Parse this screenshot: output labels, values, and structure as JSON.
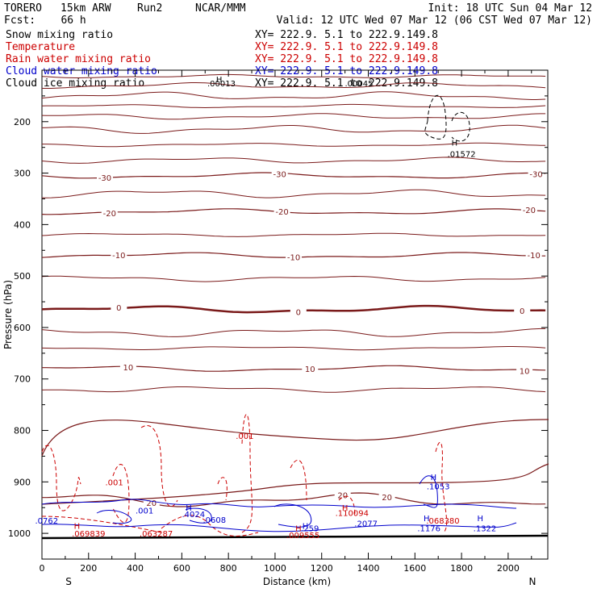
{
  "header": {
    "model": "TORERO",
    "run_desc": "15km ARW",
    "run": "Run2",
    "org": "NCAR/MMM",
    "fcst": "Fcst:    66 h",
    "init": "Init: 18 UTC Sun 04 Mar 12",
    "valid": "Valid: 12 UTC Wed 07 Mar 12 (06 CST Wed 07 Mar 12)"
  },
  "fields": [
    {
      "name": "Snow mixing ratio",
      "xy": "XY= 222.9.  5.1 to 222.9.149.8",
      "color": "#000000"
    },
    {
      "name": "Temperature",
      "xy": "XY= 222.9.  5.1 to 222.9.149.8",
      "color": "#cc0000"
    },
    {
      "name": "Rain water mixing ratio",
      "xy": "XY= 222.9.  5.1 to 222.9.149.8",
      "color": "#cc0000"
    },
    {
      "name": "Cloud water mixing ratio",
      "xy": "XY= 222.9.  5.1 to 222.9.149.8",
      "color": "#0000cc"
    },
    {
      "name": "Cloud ice mixing ratio",
      "xy": "XY= 222.9.  5.1 to 222.9.149.8",
      "color": "#000000"
    }
  ],
  "chart_data": {
    "type": "line",
    "xlabel": "Distance (km)",
    "ylabel": "Pressure (hPa)",
    "xlim": [
      0,
      2170
    ],
    "ylim": [
      1050,
      100
    ],
    "x_ticks": [
      0,
      200,
      400,
      600,
      800,
      1000,
      1200,
      1400,
      1600,
      1800,
      2000
    ],
    "y_ticks": [
      200,
      300,
      400,
      500,
      600,
      700,
      800,
      900,
      1000
    ],
    "endpoints": {
      "left": "S",
      "right": "N"
    },
    "temperature_isotherms": [
      {
        "label": "-30",
        "p": 305,
        "label_x": [
          270,
          1020,
          2120
        ]
      },
      {
        "label": "-20",
        "p": 375,
        "label_x": [
          290,
          1030,
          2090
        ]
      },
      {
        "label": "-10",
        "p": 460,
        "label_x": [
          330,
          1080,
          2110
        ]
      },
      {
        "label": "0",
        "p": 565,
        "label_x": [
          330,
          1100,
          2060
        ]
      },
      {
        "label": "10",
        "p": 680,
        "label_x": [
          370,
          1150,
          2070
        ]
      },
      {
        "label": "20",
        "p": 935,
        "label_x": [
          470,
          1290,
          1480
        ]
      }
    ],
    "contour_labels": [
      {
        "text": "H",
        "x": 760,
        "p": 117,
        "series": "Snow mixing ratio"
      },
      {
        "text": ".00013",
        "x": 770,
        "p": 125,
        "series": "Snow mixing ratio"
      },
      {
        "text": ".00045",
        "x": 1360,
        "p": 125,
        "series": "Snow mixing ratio"
      },
      {
        "text": "H",
        "x": 1770,
        "p": 240,
        "series": "Snow mixing ratio"
      },
      {
        "text": ".01572",
        "x": 1800,
        "p": 262,
        "series": "Snow mixing ratio"
      },
      {
        "text": ".001",
        "x": 870,
        "p": 810,
        "series": "Rain water mixing ratio"
      },
      {
        "text": ".001",
        "x": 310,
        "p": 900,
        "series": "Rain water mixing ratio"
      },
      {
        "text": "H",
        "x": 150,
        "p": 985,
        "series": "Rain water mixing ratio"
      },
      {
        "text": ".069839",
        "x": 200,
        "p": 1000,
        "series": "Rain water mixing ratio"
      },
      {
        "text": ".063287",
        "x": 490,
        "p": 1000,
        "series": "Rain water mixing ratio"
      },
      {
        "text": "H",
        "x": 1100,
        "p": 990,
        "series": "Rain water mixing ratio"
      },
      {
        "text": ".009555",
        "x": 1120,
        "p": 1003,
        "series": "Rain water mixing ratio"
      },
      {
        "text": "H",
        "x": 1300,
        "p": 950,
        "series": "Rain water mixing ratio"
      },
      {
        "text": ".110094",
        "x": 1330,
        "p": 960,
        "series": "Rain water mixing ratio"
      },
      {
        "text": ".068380",
        "x": 1720,
        "p": 975,
        "series": "Rain water mixing ratio"
      },
      {
        "text": ".001",
        "x": 440,
        "p": 955,
        "series": "Cloud water mixing ratio"
      },
      {
        "text": "H",
        "x": 630,
        "p": 950,
        "series": "Cloud water mixing ratio"
      },
      {
        "text": ".4024",
        "x": 650,
        "p": 962,
        "series": "Cloud water mixing ratio"
      },
      {
        "text": ".0608",
        "x": 740,
        "p": 973,
        "series": "Cloud water mixing ratio"
      },
      {
        "text": ".0762",
        "x": 20,
        "p": 975,
        "series": "Cloud water mixing ratio"
      },
      {
        "text": "H",
        "x": 1130,
        "p": 985,
        "series": "Cloud water mixing ratio"
      },
      {
        "text": ".259",
        "x": 1150,
        "p": 990,
        "series": "Cloud water mixing ratio"
      },
      {
        "text": ".2077",
        "x": 1390,
        "p": 980,
        "series": "Cloud water mixing ratio"
      },
      {
        "text": "H",
        "x": 1680,
        "p": 890,
        "series": "Cloud water mixing ratio"
      },
      {
        "text": ".1053",
        "x": 1700,
        "p": 908,
        "series": "Cloud water mixing ratio"
      },
      {
        "text": "H",
        "x": 1650,
        "p": 970,
        "series": "Cloud water mixing ratio"
      },
      {
        "text": ".1176",
        "x": 1660,
        "p": 990,
        "series": "Cloud water mixing ratio"
      },
      {
        "text": "H",
        "x": 1880,
        "p": 970,
        "series": "Cloud water mixing ratio"
      },
      {
        "text": ".1322",
        "x": 1900,
        "p": 990,
        "series": "Cloud water mixing ratio"
      }
    ]
  }
}
